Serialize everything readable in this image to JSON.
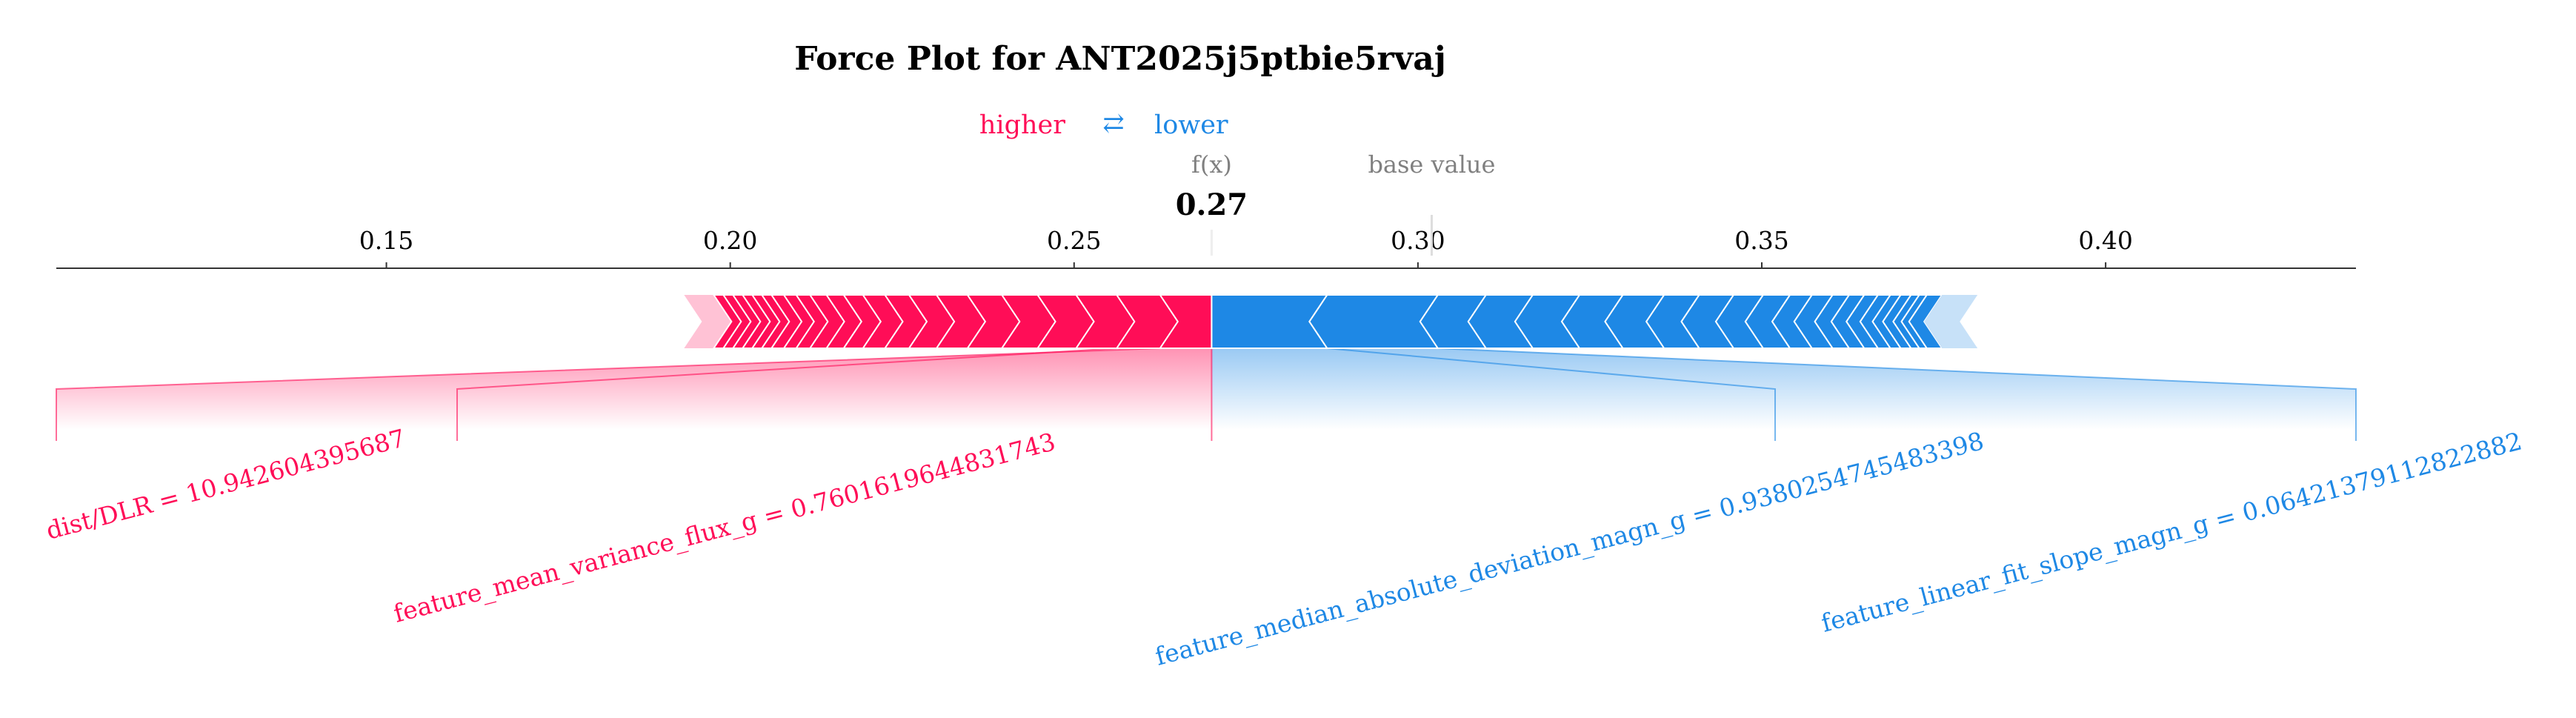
{
  "chart_data": {
    "type": "force",
    "title": "Force Plot for ANT2025j5ptbie5rvaj",
    "legend": {
      "higher": "higher",
      "arrow": "⇄",
      "lower": "lower"
    },
    "fx_label": "f(x)",
    "fx_value_text": "0.27",
    "base_value_label": "base value",
    "output_value": 0.27,
    "base_value": 0.302,
    "xlim": [
      0.102,
      0.4364
    ],
    "ticks": [
      0.15,
      0.2,
      0.25,
      0.3,
      0.35,
      0.4
    ],
    "tick_labels": [
      "0.15",
      "0.20",
      "0.25",
      "0.30",
      "0.35",
      "0.40"
    ],
    "positive_range": [
      0.1976,
      0.27
    ],
    "negative_range": [
      0.27,
      0.3762
    ],
    "positive_segment_edges": [
      0.1976,
      0.199,
      0.2004,
      0.2018,
      0.2032,
      0.2046,
      0.206,
      0.2078,
      0.2096,
      0.2116,
      0.214,
      0.2165,
      0.2193,
      0.2225,
      0.226,
      0.23,
      0.2345,
      0.2395,
      0.2447,
      0.2503,
      0.2562,
      0.2625,
      0.27
    ],
    "negative_segment_edges": [
      0.27,
      0.2868,
      0.3029,
      0.3099,
      0.3167,
      0.3235,
      0.3298,
      0.3358,
      0.3409,
      0.3459,
      0.3502,
      0.3541,
      0.3573,
      0.3603,
      0.3627,
      0.3649,
      0.3669,
      0.3687,
      0.3702,
      0.3717,
      0.3729,
      0.374,
      0.3762
    ],
    "features": [
      {
        "label": "dist/DLR = 10.942604395687",
        "direction": "positive",
        "effect": 0.0075
      },
      {
        "label": "feature_mean_variance_flux_g = 0.7601619644831743",
        "direction": "positive",
        "effect": 0.0063
      },
      {
        "label": "feature_median_absolute_deviation_magn_g = 0.9380254745483398",
        "direction": "negative",
        "effect": 0.0168
      },
      {
        "label": "feature_linear_fit_slope_magn_g = 0.06421379112822882",
        "direction": "negative",
        "effect": 0.0161
      }
    ],
    "colors": {
      "positive": "#ff0d57",
      "negative": "#1e88e5",
      "axis": "#333333",
      "muted": "#808080"
    }
  }
}
